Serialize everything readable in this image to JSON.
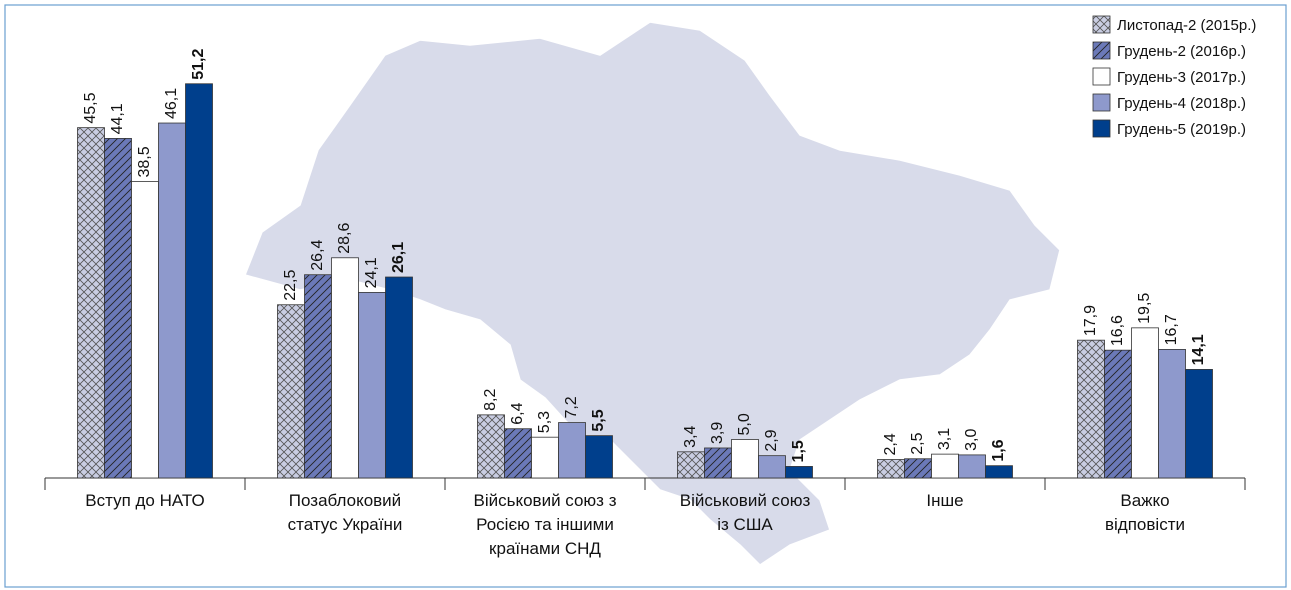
{
  "chart_data": {
    "type": "bar",
    "categories": [
      [
        "Вступ до НАТО"
      ],
      [
        "Позаблоковий",
        "статус України"
      ],
      [
        "Військовий союз з",
        "Росією та іншими",
        "країнами СНД"
      ],
      [
        "Військовий союз",
        "із США"
      ],
      [
        "Інше"
      ],
      [
        "Важко",
        "відповісти"
      ]
    ],
    "series": [
      {
        "name": "Листопад-2 (2015р.)",
        "color": "#c9cde2",
        "pattern": "crosshatch",
        "values": [
          45.5,
          22.5,
          8.2,
          3.4,
          2.4,
          17.9
        ],
        "value_labels": [
          "45,5",
          "22,5",
          "8,2",
          "3,4",
          "2,4",
          "17,9"
        ]
      },
      {
        "name": "Грудень-2 (2016р.)",
        "color": "#6b79b8",
        "pattern": "hatch",
        "values": [
          44.1,
          26.4,
          6.4,
          3.9,
          2.5,
          16.6
        ],
        "value_labels": [
          "44,1",
          "26,4",
          "6,4",
          "3,9",
          "2,5",
          "16,6"
        ]
      },
      {
        "name": "Грудень-3 (2017р.)",
        "color": "#ffffff",
        "values": [
          38.5,
          28.6,
          5.3,
          5.0,
          3.1,
          19.5
        ],
        "value_labels": [
          "38,5",
          "28,6",
          "5,3",
          "5,0",
          "3,1",
          "19,5"
        ]
      },
      {
        "name": "Грудень-4 (2018р.)",
        "color": "#8e99cc",
        "values": [
          46.1,
          24.1,
          7.2,
          2.9,
          3.0,
          16.7
        ],
        "value_labels": [
          "46,1",
          "24,1",
          "7,2",
          "2,9",
          "3,0",
          "16,7"
        ]
      },
      {
        "name": "Грудень-5 (2019р.)",
        "color": "#003f8c",
        "values": [
          51.2,
          26.1,
          5.5,
          1.5,
          1.6,
          14.1
        ],
        "value_labels": [
          "51,2",
          "26,1",
          "5,5",
          "1,5",
          "1,6",
          "14,1"
        ]
      }
    ],
    "ylim": [
      0,
      60
    ],
    "legend": "top-right"
  }
}
